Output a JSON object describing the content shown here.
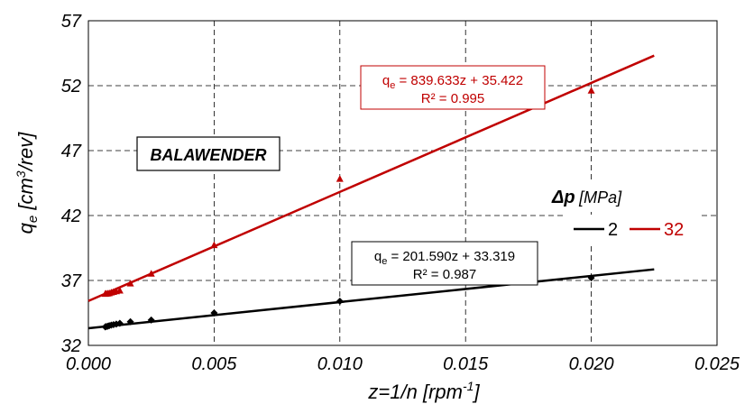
{
  "chart_data": {
    "type": "scatter",
    "xlabel": {
      "main": "z=1/n",
      "unit_prefix": "[rpm",
      "unit_sup": "-1",
      "unit_suffix": "]"
    },
    "ylabel": {
      "var": "q",
      "sub": "e",
      "unit_prefix": "[cm",
      "unit_sup": "3",
      "unit_suffix": "/rev]"
    },
    "xlim": [
      0,
      0.025
    ],
    "ylim": [
      32,
      57
    ],
    "x_ticks": [
      "0.000",
      "0.005",
      "0.010",
      "0.015",
      "0.020",
      "0.025"
    ],
    "x_tick_values": [
      0,
      0.005,
      0.01,
      0.015,
      0.02,
      0.025
    ],
    "y_ticks": [
      "32",
      "37",
      "42",
      "47",
      "52",
      "57"
    ],
    "y_tick_values": [
      32,
      37,
      42,
      47,
      52,
      57
    ],
    "grid": true,
    "annotation": "BALAWENDER",
    "legend": {
      "title_symbol": "Δp",
      "title_unit": "[MPa]",
      "placement": "right"
    },
    "series": [
      {
        "name": "2",
        "color": "#000000",
        "marker": "diamond",
        "x": [
          0.00067,
          0.00071,
          0.00077,
          0.00083,
          0.00091,
          0.001,
          0.00111,
          0.00125,
          0.00167,
          0.0025,
          0.005,
          0.01,
          0.02
        ],
        "y": [
          33.42,
          33.45,
          33.48,
          33.52,
          33.56,
          33.6,
          33.64,
          33.7,
          33.82,
          33.95,
          34.5,
          35.4,
          37.2
        ],
        "trendline": {
          "slope": 201.59,
          "intercept": 33.319,
          "x_end": 0.0225
        },
        "equation": {
          "q": "q",
          "sub": "e",
          "rest": " = 201.590z + 33.319",
          "r2": "R² = 0.987"
        }
      },
      {
        "name": "32",
        "color": "#c00000",
        "marker": "triangle",
        "x": [
          0.00067,
          0.00071,
          0.00077,
          0.00083,
          0.00091,
          0.001,
          0.00111,
          0.00125,
          0.00167,
          0.0025,
          0.005,
          0.01,
          0.02
        ],
        "y": [
          35.95,
          35.97,
          35.98,
          36.0,
          36.05,
          36.1,
          36.15,
          36.2,
          36.75,
          37.5,
          39.7,
          44.8,
          51.6
        ],
        "trendline": {
          "slope": 839.633,
          "intercept": 35.422,
          "x_end": 0.0225
        },
        "equation": {
          "q": "q",
          "sub": "e",
          "rest": " = 839.633z + 35.422",
          "r2": "R² = 0.995"
        }
      }
    ]
  }
}
